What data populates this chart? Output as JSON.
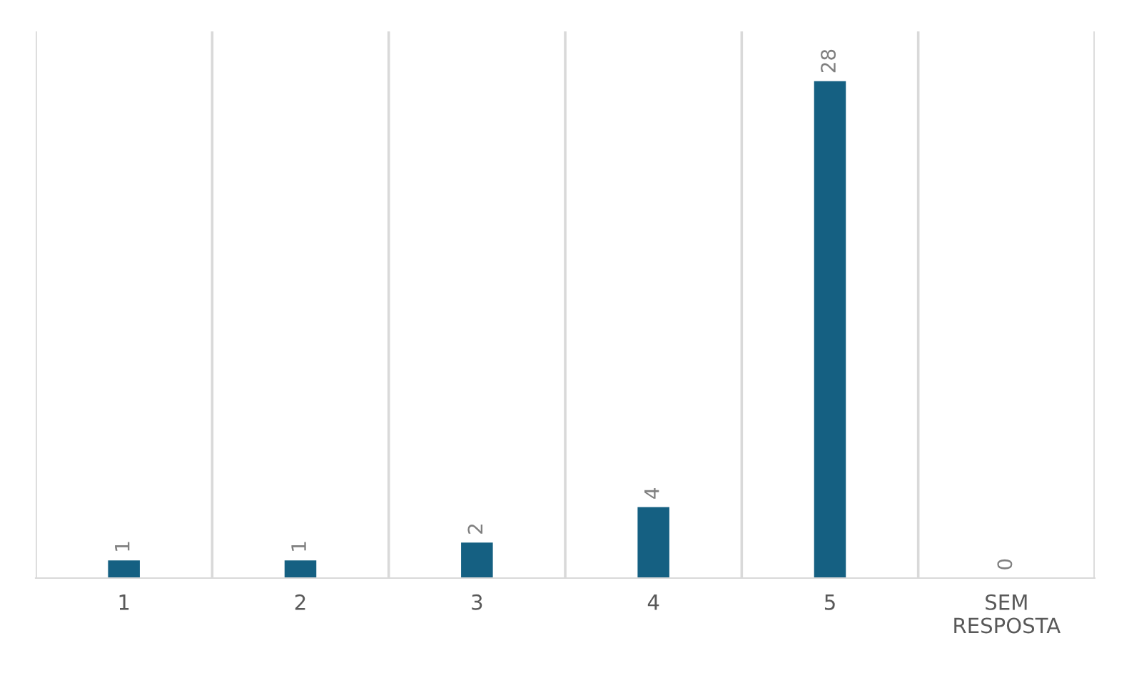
{
  "chart_data": {
    "type": "bar",
    "categories": [
      "1",
      "2",
      "3",
      "4",
      "5",
      "SEM RESPOSTA"
    ],
    "values": [
      1,
      1,
      2,
      4,
      28,
      0
    ],
    "color": "#156082",
    "tick_labels": "x",
    "data_labels": true,
    "grid": "x",
    "legend": false
  }
}
